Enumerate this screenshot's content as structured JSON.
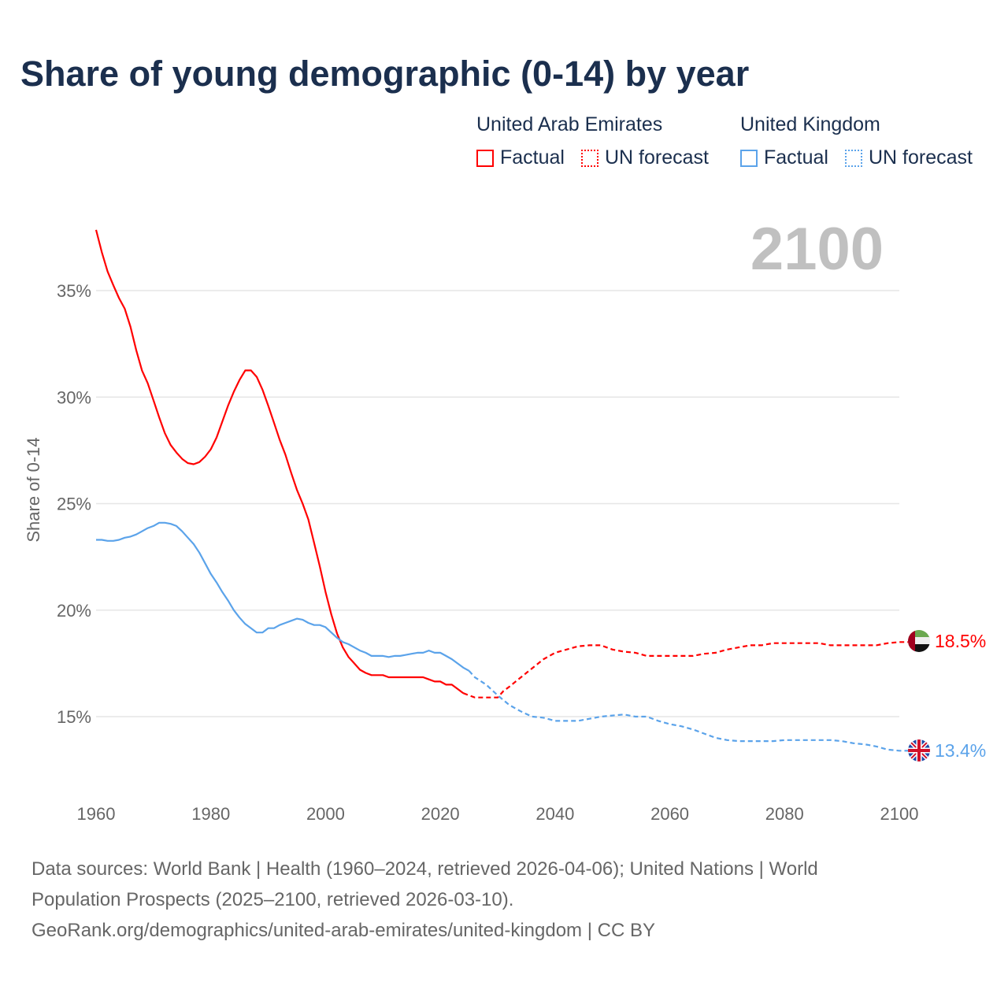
{
  "chart_data": {
    "type": "line",
    "title": "Share of young demographic (0-14) by year",
    "ylabel": "Share of 0-14",
    "xlabel": "",
    "xlim": [
      1960,
      2100
    ],
    "ylim": [
      12,
      38
    ],
    "x_ticks": [
      1960,
      1980,
      2000,
      2020,
      2040,
      2060,
      2080,
      2100
    ],
    "x_tick_labels": [
      "1960",
      "1980",
      "2000",
      "2020",
      "2040",
      "2060",
      "2080",
      "2100"
    ],
    "y_ticks": [
      15,
      20,
      25,
      30,
      35
    ],
    "y_tick_labels": [
      "15%",
      "20%",
      "25%",
      "30%",
      "35%"
    ],
    "grid": true,
    "current_year_label": "2100",
    "legend": {
      "placement": "top-right",
      "groups": [
        {
          "country": "United Arab Emirates",
          "items": [
            "Factual",
            "UN forecast"
          ],
          "color": "#ff0000"
        },
        {
          "country": "United Kingdom",
          "items": [
            "Factual",
            "UN forecast"
          ],
          "color": "#5ba3ea"
        }
      ]
    },
    "series": [
      {
        "name": "United Arab Emirates",
        "color": "#ff0000",
        "end_label": "18.5%",
        "flag": "uae-flag",
        "factual": [
          [
            1960,
            37.85
          ],
          [
            1961,
            36.8
          ],
          [
            1962,
            35.9
          ],
          [
            1963,
            35.25
          ],
          [
            1964,
            34.65
          ],
          [
            1965,
            34.15
          ],
          [
            1966,
            33.3
          ],
          [
            1967,
            32.2
          ],
          [
            1968,
            31.25
          ],
          [
            1969,
            30.65
          ],
          [
            1970,
            29.85
          ],
          [
            1971,
            29.05
          ],
          [
            1972,
            28.3
          ],
          [
            1973,
            27.75
          ],
          [
            1974,
            27.4
          ],
          [
            1975,
            27.1
          ],
          [
            1976,
            26.9
          ],
          [
            1977,
            26.85
          ],
          [
            1978,
            26.95
          ],
          [
            1979,
            27.2
          ],
          [
            1980,
            27.55
          ],
          [
            1981,
            28.1
          ],
          [
            1982,
            28.85
          ],
          [
            1983,
            29.6
          ],
          [
            1984,
            30.25
          ],
          [
            1985,
            30.8
          ],
          [
            1986,
            31.25
          ],
          [
            1987,
            31.25
          ],
          [
            1988,
            30.95
          ],
          [
            1989,
            30.35
          ],
          [
            1990,
            29.6
          ],
          [
            1991,
            28.8
          ],
          [
            1992,
            28.0
          ],
          [
            1993,
            27.3
          ],
          [
            1994,
            26.45
          ],
          [
            1995,
            25.65
          ],
          [
            1996,
            25.0
          ],
          [
            1997,
            24.25
          ],
          [
            1998,
            23.15
          ],
          [
            1999,
            22.05
          ],
          [
            2000,
            20.85
          ],
          [
            2001,
            19.8
          ],
          [
            2002,
            18.9
          ],
          [
            2003,
            18.25
          ],
          [
            2004,
            17.8
          ],
          [
            2005,
            17.5
          ],
          [
            2006,
            17.2
          ],
          [
            2007,
            17.05
          ],
          [
            2008,
            16.95
          ],
          [
            2009,
            16.95
          ],
          [
            2010,
            16.95
          ],
          [
            2011,
            16.85
          ],
          [
            2012,
            16.85
          ],
          [
            2013,
            16.85
          ],
          [
            2014,
            16.85
          ],
          [
            2015,
            16.85
          ],
          [
            2016,
            16.85
          ],
          [
            2017,
            16.85
          ],
          [
            2018,
            16.75
          ],
          [
            2019,
            16.65
          ],
          [
            2020,
            16.65
          ],
          [
            2021,
            16.5
          ],
          [
            2022,
            16.5
          ],
          [
            2023,
            16.3
          ],
          [
            2024,
            16.1
          ]
        ],
        "forecast": [
          [
            2024,
            16.1
          ],
          [
            2025,
            16.0
          ],
          [
            2026,
            15.9
          ],
          [
            2028,
            15.9
          ],
          [
            2030,
            15.9
          ],
          [
            2031,
            16.2
          ],
          [
            2032,
            16.4
          ],
          [
            2035,
            17.05
          ],
          [
            2038,
            17.7
          ],
          [
            2040,
            18.0
          ],
          [
            2042,
            18.15
          ],
          [
            2044,
            18.3
          ],
          [
            2046,
            18.35
          ],
          [
            2048,
            18.35
          ],
          [
            2050,
            18.15
          ],
          [
            2052,
            18.05
          ],
          [
            2054,
            18.0
          ],
          [
            2056,
            17.85
          ],
          [
            2058,
            17.85
          ],
          [
            2060,
            17.85
          ],
          [
            2064,
            17.85
          ],
          [
            2066,
            17.95
          ],
          [
            2068,
            18.0
          ],
          [
            2070,
            18.15
          ],
          [
            2072,
            18.25
          ],
          [
            2074,
            18.35
          ],
          [
            2076,
            18.35
          ],
          [
            2078,
            18.45
          ],
          [
            2086,
            18.45
          ],
          [
            2088,
            18.35
          ],
          [
            2096,
            18.35
          ],
          [
            2098,
            18.45
          ],
          [
            2100,
            18.5
          ]
        ]
      },
      {
        "name": "United Kingdom",
        "color": "#5ba3ea",
        "end_label": "13.4%",
        "flag": "uk-flag",
        "factual": [
          [
            1960,
            23.3
          ],
          [
            1961,
            23.3
          ],
          [
            1962,
            23.25
          ],
          [
            1963,
            23.25
          ],
          [
            1964,
            23.3
          ],
          [
            1965,
            23.4
          ],
          [
            1966,
            23.45
          ],
          [
            1967,
            23.55
          ],
          [
            1968,
            23.7
          ],
          [
            1969,
            23.85
          ],
          [
            1970,
            23.95
          ],
          [
            1971,
            24.1
          ],
          [
            1972,
            24.1
          ],
          [
            1973,
            24.05
          ],
          [
            1974,
            23.95
          ],
          [
            1975,
            23.7
          ],
          [
            1976,
            23.4
          ],
          [
            1977,
            23.1
          ],
          [
            1978,
            22.7
          ],
          [
            1979,
            22.2
          ],
          [
            1980,
            21.7
          ],
          [
            1981,
            21.3
          ],
          [
            1982,
            20.85
          ],
          [
            1983,
            20.45
          ],
          [
            1984,
            20.0
          ],
          [
            1985,
            19.65
          ],
          [
            1986,
            19.35
          ],
          [
            1987,
            19.15
          ],
          [
            1988,
            18.95
          ],
          [
            1989,
            18.95
          ],
          [
            1990,
            19.15
          ],
          [
            1991,
            19.15
          ],
          [
            1992,
            19.3
          ],
          [
            1993,
            19.4
          ],
          [
            1994,
            19.5
          ],
          [
            1995,
            19.6
          ],
          [
            1996,
            19.55
          ],
          [
            1997,
            19.4
          ],
          [
            1998,
            19.3
          ],
          [
            1999,
            19.3
          ],
          [
            2000,
            19.2
          ],
          [
            2001,
            18.95
          ],
          [
            2002,
            18.7
          ],
          [
            2003,
            18.5
          ],
          [
            2004,
            18.4
          ],
          [
            2005,
            18.25
          ],
          [
            2006,
            18.1
          ],
          [
            2007,
            18.0
          ],
          [
            2008,
            17.85
          ],
          [
            2009,
            17.85
          ],
          [
            2010,
            17.85
          ],
          [
            2011,
            17.8
          ],
          [
            2012,
            17.85
          ],
          [
            2013,
            17.85
          ],
          [
            2014,
            17.9
          ],
          [
            2015,
            17.95
          ],
          [
            2016,
            18.0
          ],
          [
            2017,
            18.0
          ],
          [
            2018,
            18.1
          ],
          [
            2019,
            18.0
          ],
          [
            2020,
            18.0
          ],
          [
            2021,
            17.85
          ],
          [
            2022,
            17.7
          ],
          [
            2023,
            17.5
          ],
          [
            2024,
            17.3
          ],
          [
            2025,
            17.15
          ]
        ],
        "forecast": [
          [
            2025,
            17.15
          ],
          [
            2026,
            16.85
          ],
          [
            2028,
            16.5
          ],
          [
            2030,
            16.0
          ],
          [
            2032,
            15.55
          ],
          [
            2034,
            15.25
          ],
          [
            2036,
            15.0
          ],
          [
            2038,
            14.95
          ],
          [
            2040,
            14.8
          ],
          [
            2044,
            14.8
          ],
          [
            2046,
            14.9
          ],
          [
            2048,
            15.0
          ],
          [
            2050,
            15.05
          ],
          [
            2052,
            15.1
          ],
          [
            2054,
            15.0
          ],
          [
            2056,
            15.0
          ],
          [
            2058,
            14.8
          ],
          [
            2060,
            14.65
          ],
          [
            2062,
            14.55
          ],
          [
            2064,
            14.4
          ],
          [
            2066,
            14.2
          ],
          [
            2068,
            14.0
          ],
          [
            2070,
            13.9
          ],
          [
            2072,
            13.85
          ],
          [
            2078,
            13.85
          ],
          [
            2080,
            13.9
          ],
          [
            2088,
            13.9
          ],
          [
            2090,
            13.85
          ],
          [
            2092,
            13.75
          ],
          [
            2094,
            13.7
          ],
          [
            2096,
            13.6
          ],
          [
            2098,
            13.45
          ],
          [
            2100,
            13.4
          ]
        ]
      }
    ]
  },
  "footer": {
    "line1": "Data sources: World Bank | Health (1960–2024, retrieved 2026-04-06); United Nations | World",
    "line2": "Population Prospects (2025–2100, retrieved 2026-03-10).",
    "line3": "GeoRank.org/demographics/united-arab-emirates/united-kingdom | CC BY"
  }
}
